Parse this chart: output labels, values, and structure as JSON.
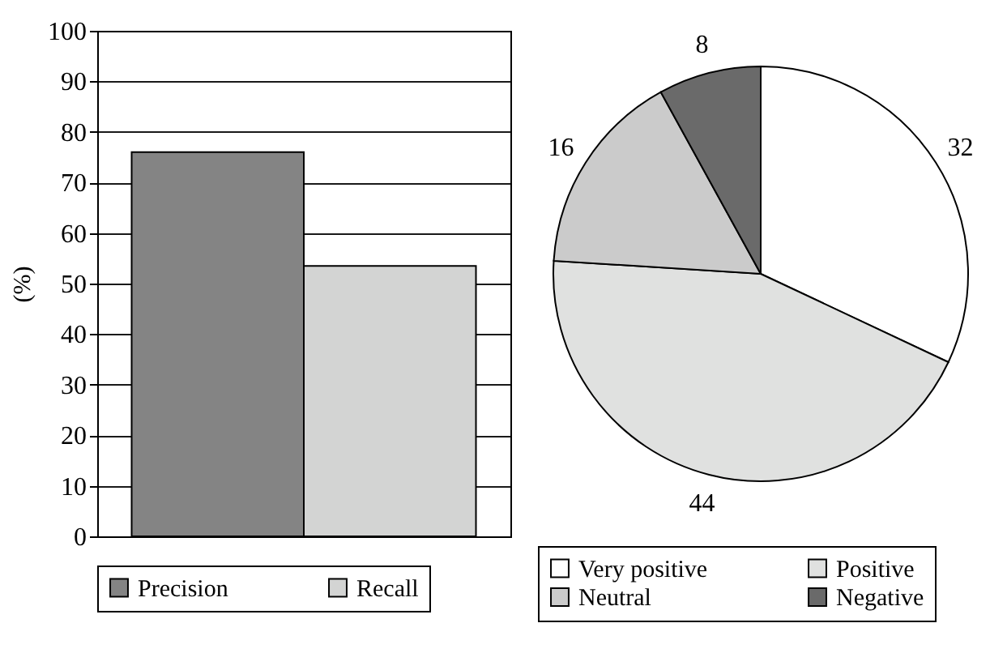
{
  "chart_data": [
    {
      "type": "bar",
      "categories": [
        null
      ],
      "ylabel": "(%)",
      "ylim": [
        0,
        100
      ],
      "yticks": [
        0,
        10,
        20,
        30,
        40,
        50,
        60,
        70,
        80,
        90,
        100
      ],
      "grid": "y",
      "legend": "bottom",
      "tick_labels": "y",
      "series": [
        {
          "name": "Precision",
          "color": "#848484",
          "values": [
            76
          ]
        },
        {
          "name": "Recall",
          "color": "#d3d4d3",
          "values": [
            53.5
          ]
        }
      ]
    },
    {
      "type": "pie",
      "categories": [
        "Very positive",
        "Positive",
        "Neutral",
        "Negative"
      ],
      "values": [
        32,
        44,
        16,
        8
      ],
      "colors": [
        "#ffffff",
        "#e0e1e0",
        "#cbcbcb",
        "#6a6a6a"
      ],
      "data_labels": true,
      "legend": "bottom"
    }
  ]
}
